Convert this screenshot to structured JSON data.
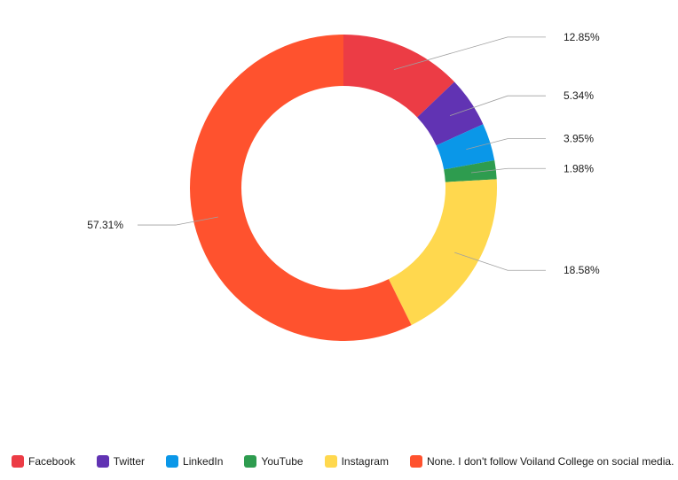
{
  "chart_data": {
    "type": "pie",
    "donut": true,
    "title": "",
    "legend_position": "bottom",
    "slices": [
      {
        "name": "Facebook",
        "value": 12.85,
        "label": "12.85%",
        "color": "#ec3c45"
      },
      {
        "name": "Twitter",
        "value": 5.34,
        "label": "5.34%",
        "color": "#6133b3"
      },
      {
        "name": "LinkedIn",
        "value": 3.95,
        "label": "3.95%",
        "color": "#0a97e8"
      },
      {
        "name": "YouTube",
        "value": 1.98,
        "label": "1.98%",
        "color": "#2e9c4f"
      },
      {
        "name": "Instagram",
        "value": 18.58,
        "label": "18.58%",
        "color": "#ffd84e"
      },
      {
        "name": "None. I don't follow Voiland College on social media.",
        "value": 57.31,
        "label": "57.31%",
        "color": "#ff522e"
      }
    ]
  }
}
